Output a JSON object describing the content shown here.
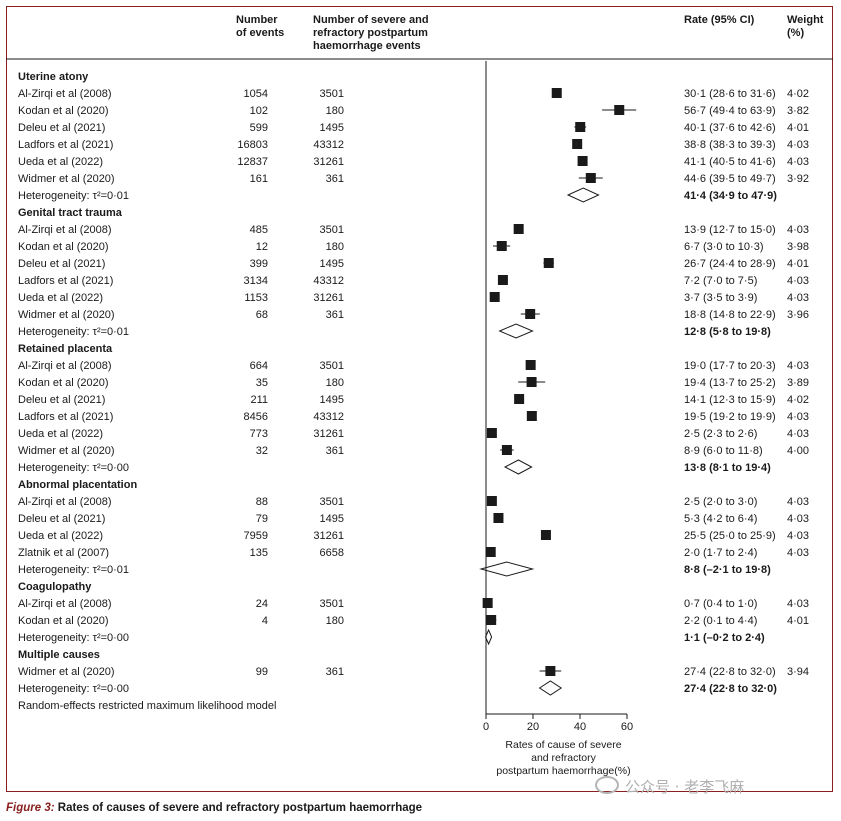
{
  "header": {
    "events_col": [
      "Number",
      "of events"
    ],
    "severe_col": [
      "Number of severe and",
      "refractory postpartum",
      "haemorrhage events"
    ],
    "rate_col": "Rate (95% CI)",
    "weight_col": [
      "Weight",
      "(%)"
    ]
  },
  "caption": {
    "label": "Figure 3:",
    "text": "Rates of causes of severe and refractory postpartum haemorrhage"
  },
  "watermark": "公众号 · 老李飞麻",
  "footnote": "Random-effects restricted maximum likelihood model",
  "chart_data": {
    "type": "forest",
    "xlabel": [
      "Rates of cause of severe",
      "and refractory",
      "postpartum haemorrhage(%)"
    ],
    "xlim": [
      0,
      60
    ],
    "xticks": [
      0,
      20,
      40,
      60
    ],
    "groups": [
      {
        "name": "Uterine atony",
        "studies": [
          {
            "study": "Al-Zirqi et al (2008)",
            "events": "1054",
            "severe": "3501",
            "rate": 30.1,
            "lo": 28.6,
            "hi": 31.6,
            "ci": "30·1 (28·6 to 31·6)",
            "weight": "4·02"
          },
          {
            "study": "Kodan et al (2020)",
            "events": "102",
            "severe": "180",
            "rate": 56.7,
            "lo": 49.4,
            "hi": 63.9,
            "ci": "56·7 (49·4 to 63·9)",
            "weight": "3·82"
          },
          {
            "study": "Deleu et al (2021)",
            "events": "599",
            "severe": "1495",
            "rate": 40.1,
            "lo": 37.6,
            "hi": 42.6,
            "ci": "40·1 (37·6 to 42·6)",
            "weight": "4·01"
          },
          {
            "study": "Ladfors et al (2021)",
            "events": "16803",
            "severe": "43312",
            "rate": 38.8,
            "lo": 38.3,
            "hi": 39.3,
            "ci": "38·8 (38·3 to 39·3)",
            "weight": "4·03"
          },
          {
            "study": "Ueda et al (2022)",
            "events": "12837",
            "severe": "31261",
            "rate": 41.1,
            "lo": 40.5,
            "hi": 41.6,
            "ci": "41·1 (40·5 to 41·6)",
            "weight": "4·03"
          },
          {
            "study": "Widmer et al (2020)",
            "events": "161",
            "severe": "361",
            "rate": 44.6,
            "lo": 39.5,
            "hi": 49.7,
            "ci": "44·6 (39·5 to 49·7)",
            "weight": "3·92"
          }
        ],
        "heterogeneity": "Heterogeneity: τ²=0·01",
        "pooled": {
          "rate": 41.4,
          "lo": 34.9,
          "hi": 47.9,
          "ci": "41·4 (34·9 to 47·9)"
        }
      },
      {
        "name": "Genital tract trauma",
        "studies": [
          {
            "study": "Al-Zirqi et al (2008)",
            "events": "485",
            "severe": "3501",
            "rate": 13.9,
            "lo": 12.7,
            "hi": 15.0,
            "ci": "13·9 (12·7 to 15·0)",
            "weight": "4·03"
          },
          {
            "study": "Kodan et al (2020)",
            "events": "12",
            "severe": "180",
            "rate": 6.7,
            "lo": 3.0,
            "hi": 10.3,
            "ci": "6·7 (3·0 to 10·3)",
            "weight": "3·98"
          },
          {
            "study": "Deleu et al (2021)",
            "events": "399",
            "severe": "1495",
            "rate": 26.7,
            "lo": 24.4,
            "hi": 28.9,
            "ci": "26·7 (24·4 to 28·9)",
            "weight": "4·01"
          },
          {
            "study": "Ladfors et al (2021)",
            "events": "3134",
            "severe": "43312",
            "rate": 7.2,
            "lo": 7.0,
            "hi": 7.5,
            "ci": "7·2 (7·0 to 7·5)",
            "weight": "4·03"
          },
          {
            "study": "Ueda et al (2022)",
            "events": "1153",
            "severe": "31261",
            "rate": 3.7,
            "lo": 3.5,
            "hi": 3.9,
            "ci": "3·7 (3·5 to 3·9)",
            "weight": "4·03"
          },
          {
            "study": "Widmer et al (2020)",
            "events": "68",
            "severe": "361",
            "rate": 18.8,
            "lo": 14.8,
            "hi": 22.9,
            "ci": "18·8 (14·8 to 22·9)",
            "weight": "3·96"
          }
        ],
        "heterogeneity": "Heterogeneity: τ²=0·01",
        "pooled": {
          "rate": 12.8,
          "lo": 5.8,
          "hi": 19.8,
          "ci": "12·8 (5·8 to 19·8)"
        }
      },
      {
        "name": "Retained placenta",
        "studies": [
          {
            "study": "Al-Zirqi et al (2008)",
            "events": "664",
            "severe": "3501",
            "rate": 19.0,
            "lo": 17.7,
            "hi": 20.3,
            "ci": "19·0 (17·7 to 20·3)",
            "weight": "4·03"
          },
          {
            "study": "Kodan et al (2020)",
            "events": "35",
            "severe": "180",
            "rate": 19.4,
            "lo": 13.7,
            "hi": 25.2,
            "ci": "19·4 (13·7 to 25·2)",
            "weight": "3·89"
          },
          {
            "study": "Deleu et al (2021)",
            "events": "211",
            "severe": "1495",
            "rate": 14.1,
            "lo": 12.3,
            "hi": 15.9,
            "ci": "14·1 (12·3 to 15·9)",
            "weight": "4·02"
          },
          {
            "study": "Ladfors et al (2021)",
            "events": "8456",
            "severe": "43312",
            "rate": 19.5,
            "lo": 19.2,
            "hi": 19.9,
            "ci": "19·5 (19·2 to 19·9)",
            "weight": "4·03"
          },
          {
            "study": "Ueda et al (2022)",
            "events": "773",
            "severe": "31261",
            "rate": 2.5,
            "lo": 2.3,
            "hi": 2.6,
            "ci": "2·5 (2·3 to 2·6)",
            "weight": "4·03"
          },
          {
            "study": "Widmer et al (2020)",
            "events": "32",
            "severe": "361",
            "rate": 8.9,
            "lo": 6.0,
            "hi": 11.8,
            "ci": "8·9 (6·0 to 11·8)",
            "weight": "4·00"
          }
        ],
        "heterogeneity": "Heterogeneity: τ²=0·00",
        "pooled": {
          "rate": 13.8,
          "lo": 8.1,
          "hi": 19.4,
          "ci": "13·8 (8·1 to 19·4)"
        }
      },
      {
        "name": "Abnormal placentation",
        "studies": [
          {
            "study": "Al-Zirqi et al (2008)",
            "events": "88",
            "severe": "3501",
            "rate": 2.5,
            "lo": 2.0,
            "hi": 3.0,
            "ci": "2·5 (2·0 to 3·0)",
            "weight": "4·03"
          },
          {
            "study": "Deleu et al (2021)",
            "events": "79",
            "severe": "1495",
            "rate": 5.3,
            "lo": 4.2,
            "hi": 6.4,
            "ci": "5·3 (4·2 to 6·4)",
            "weight": "4·03"
          },
          {
            "study": "Ueda et al (2022)",
            "events": "7959",
            "severe": "31261",
            "rate": 25.5,
            "lo": 25.0,
            "hi": 25.9,
            "ci": "25·5 (25·0 to 25·9)",
            "weight": "4·03"
          },
          {
            "study": "Zlatnik et al (2007)",
            "events": "135",
            "severe": "6658",
            "rate": 2.0,
            "lo": 1.7,
            "hi": 2.4,
            "ci": "2·0 (1·7 to 2·4)",
            "weight": "4·03"
          }
        ],
        "heterogeneity": "Heterogeneity: τ²=0·01",
        "pooled": {
          "rate": 8.8,
          "lo": -2.1,
          "hi": 19.8,
          "ci": "8·8 (–2·1 to 19·8)"
        }
      },
      {
        "name": "Coagulopathy",
        "studies": [
          {
            "study": "Al-Zirqi et al (2008)",
            "events": "24",
            "severe": "3501",
            "rate": 0.7,
            "lo": 0.4,
            "hi": 1.0,
            "ci": "0·7 (0·4 to 1·0)",
            "weight": "4·03"
          },
          {
            "study": "Kodan et al (2020)",
            "events": "4",
            "severe": "180",
            "rate": 2.2,
            "lo": 0.1,
            "hi": 4.4,
            "ci": "2·2 (0·1 to 4·4)",
            "weight": "4·01"
          }
        ],
        "heterogeneity": "Heterogeneity: τ²=0·00",
        "pooled": {
          "rate": 1.1,
          "lo": -0.2,
          "hi": 2.4,
          "ci": "1·1 (–0·2 to 2·4)"
        }
      },
      {
        "name": "Multiple causes",
        "studies": [
          {
            "study": "Widmer et al (2020)",
            "events": "99",
            "severe": "361",
            "rate": 27.4,
            "lo": 22.8,
            "hi": 32.0,
            "ci": "27·4 (22·8 to 32·0)",
            "weight": "3·94"
          }
        ],
        "heterogeneity": "Heterogeneity: τ²=0·00",
        "pooled": {
          "rate": 27.4,
          "lo": 22.8,
          "hi": 32.0,
          "ci": "27·4 (22·8 to 32·0)"
        }
      }
    ]
  }
}
